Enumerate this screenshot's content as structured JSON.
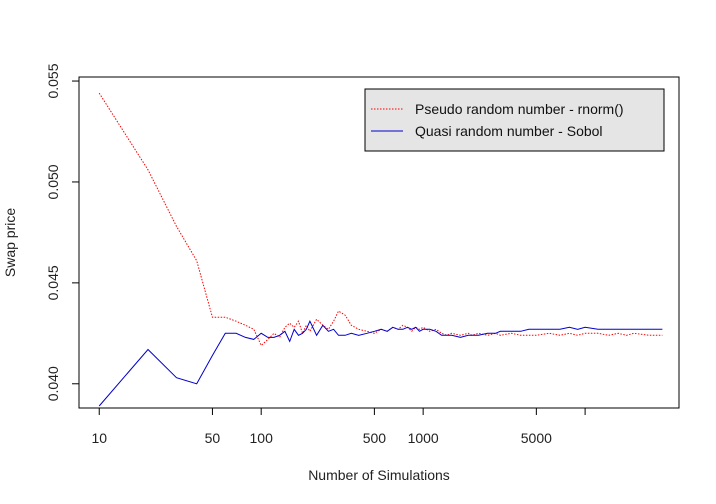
{
  "chart_data": {
    "type": "line",
    "title": "",
    "xlabel": "Number of Simulations",
    "ylabel": "Swap price",
    "x_scale": "log",
    "xlim": [
      7.5,
      38000
    ],
    "ylim": [
      0.0388,
      0.0552
    ],
    "x_ticks": [
      10,
      50,
      100,
      500,
      1000,
      5000,
      10000
    ],
    "x_tick_labels": [
      "10",
      "50",
      "100",
      "500",
      "1000",
      "5000",
      ""
    ],
    "y_ticks": [
      0.04,
      0.045,
      0.05,
      0.055
    ],
    "y_tick_labels": [
      "0.040",
      "0.045",
      "0.050",
      "0.055"
    ],
    "grid": false,
    "legend_position": "top-right",
    "series": [
      {
        "name": "Pseudo random number - rnorm()",
        "color": "#ff0000",
        "style": "dotted",
        "x": [
          10,
          20,
          30,
          40,
          50,
          60,
          70,
          80,
          90,
          100,
          110,
          120,
          130,
          140,
          150,
          160,
          170,
          180,
          190,
          200,
          220,
          240,
          260,
          280,
          300,
          330,
          360,
          400,
          450,
          500,
          550,
          600,
          650,
          700,
          750,
          800,
          850,
          900,
          950,
          1000,
          1100,
          1200,
          1300,
          1400,
          1500,
          1700,
          1900,
          2000,
          2200,
          2500,
          2800,
          3000,
          3500,
          4000,
          4500,
          5000,
          6000,
          7000,
          8000,
          9000,
          10000,
          12000,
          14000,
          16000,
          18000,
          20000,
          25000,
          30000
        ],
        "y": [
          0.0544,
          0.0506,
          0.0478,
          0.0461,
          0.0433,
          0.0433,
          0.0431,
          0.0429,
          0.0427,
          0.0419,
          0.0422,
          0.0425,
          0.0423,
          0.0428,
          0.043,
          0.0428,
          0.0431,
          0.0425,
          0.0429,
          0.0426,
          0.0432,
          0.0429,
          0.0427,
          0.0431,
          0.0436,
          0.0434,
          0.0429,
          0.0427,
          0.0426,
          0.0425,
          0.0427,
          0.0426,
          0.0428,
          0.0427,
          0.0429,
          0.0428,
          0.0426,
          0.0428,
          0.0427,
          0.0428,
          0.0426,
          0.0427,
          0.0425,
          0.0424,
          0.0425,
          0.0424,
          0.0425,
          0.0424,
          0.0425,
          0.0424,
          0.0425,
          0.0424,
          0.0425,
          0.0424,
          0.0424,
          0.0424,
          0.0425,
          0.0424,
          0.0425,
          0.0424,
          0.0425,
          0.0425,
          0.0424,
          0.0425,
          0.0424,
          0.0425,
          0.0424,
          0.0424
        ]
      },
      {
        "name": "Quasi random number - Sobol",
        "color": "#0000cc",
        "style": "solid",
        "x": [
          10,
          20,
          30,
          40,
          50,
          60,
          70,
          80,
          90,
          100,
          110,
          120,
          130,
          140,
          150,
          160,
          170,
          180,
          190,
          200,
          220,
          240,
          260,
          280,
          300,
          330,
          360,
          400,
          450,
          500,
          550,
          600,
          650,
          700,
          750,
          800,
          850,
          900,
          950,
          1000,
          1100,
          1200,
          1300,
          1400,
          1500,
          1700,
          1900,
          2000,
          2200,
          2500,
          2800,
          3000,
          3500,
          4000,
          4500,
          5000,
          6000,
          7000,
          8000,
          9000,
          10000,
          12000,
          14000,
          16000,
          18000,
          20000,
          25000,
          30000
        ],
        "y": [
          0.0389,
          0.0417,
          0.0403,
          0.04,
          0.0414,
          0.0425,
          0.0425,
          0.0423,
          0.0422,
          0.0425,
          0.0423,
          0.0423,
          0.0424,
          0.0426,
          0.0421,
          0.0427,
          0.0424,
          0.0425,
          0.0427,
          0.0431,
          0.0424,
          0.0429,
          0.0426,
          0.0427,
          0.0424,
          0.0424,
          0.0425,
          0.0424,
          0.0425,
          0.0426,
          0.0427,
          0.0426,
          0.0428,
          0.0427,
          0.0427,
          0.0428,
          0.0427,
          0.0428,
          0.0426,
          0.0427,
          0.0427,
          0.0426,
          0.0424,
          0.0424,
          0.0424,
          0.0423,
          0.0424,
          0.0424,
          0.0424,
          0.0425,
          0.0425,
          0.0426,
          0.0426,
          0.0426,
          0.0427,
          0.0427,
          0.0427,
          0.0427,
          0.0428,
          0.0427,
          0.0428,
          0.0427,
          0.0427,
          0.0427,
          0.0427,
          0.0427,
          0.0427,
          0.0427
        ]
      }
    ],
    "colors": {
      "legend_background": "#e5e5e5",
      "axis": "#000000"
    }
  }
}
